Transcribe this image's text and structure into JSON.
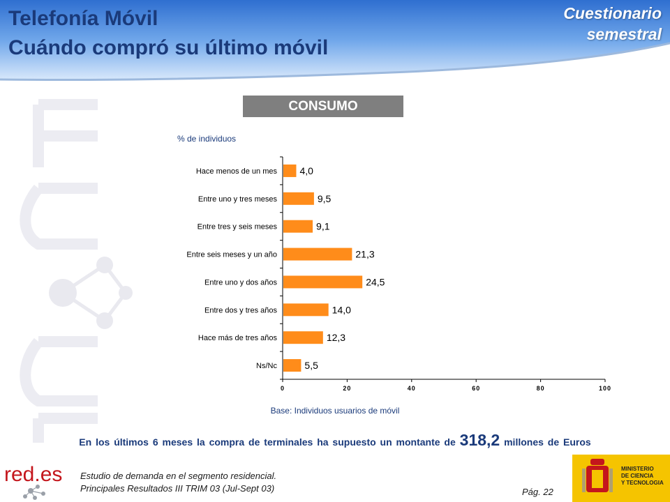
{
  "header": {
    "title_line1": "Telefonía Móvil",
    "title_line2": "Cuándo compró su último móvil",
    "badge_line1": "Cuestionario",
    "badge_line2": "semestral"
  },
  "section_label": "CONSUMO",
  "chart_data": {
    "type": "bar",
    "orientation": "horizontal",
    "ylabel": "% de individuos",
    "categories": [
      "Hace menos de un mes",
      "Entre uno y tres meses",
      "Entre tres y seis meses",
      "Entre seis meses y un año",
      "Entre uno y dos años",
      "Entre dos y tres años",
      "Hace más de tres años",
      "Ns/Nc"
    ],
    "values": [
      4.0,
      9.5,
      9.1,
      21.3,
      24.5,
      14.0,
      12.3,
      5.5
    ],
    "value_labels": [
      "4,0",
      "9,5",
      "9,1",
      "21,3",
      "24,5",
      "14,0",
      "12,3",
      "5,5"
    ],
    "xlim": [
      0,
      100
    ],
    "xticks": [
      0,
      20,
      40,
      60,
      80,
      100
    ],
    "xtick_labels": [
      "0",
      "20",
      "40",
      "60",
      "80",
      "100"
    ],
    "bar_color": "#ff8c1a",
    "grid": false
  },
  "base_note": "Base: Individuos usuarios de móvil",
  "statement": {
    "prefix": "En los últimos 6 meses la compra de terminales ha supuesto un montante de",
    "amount": "318,2",
    "suffix": "millones de Euros"
  },
  "footer": {
    "logo_text": "red.es",
    "study_line1": "Estudio de demanda en el segmento residencial.",
    "study_line2": "Principales Resultados III TRIM 03 (Jul-Sept 03)",
    "page": "Pág. 22",
    "ministry_line1": "MINISTERIO",
    "ministry_line2": "DE CIENCIA",
    "ministry_line3": "Y TECNOLOGIA"
  },
  "colors": {
    "title": "#1a3a7a",
    "header_blue": "#3a7bd5",
    "bar": "#ff8c1a"
  }
}
